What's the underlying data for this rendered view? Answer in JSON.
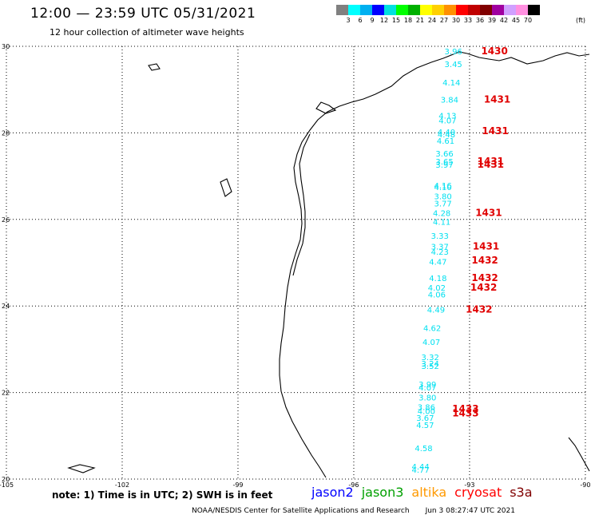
{
  "header": {
    "title": "12:00 — 23:59 UTC 05/31/2021",
    "subtitle": "12 hour collection of altimeter wave heights"
  },
  "colorbar": {
    "colors": [
      "#808080",
      "#00ffff",
      "#00b0f0",
      "#0000ff",
      "#00e0e0",
      "#00ff00",
      "#00b000",
      "#ffff00",
      "#ffd000",
      "#ff9000",
      "#ff0000",
      "#c00000",
      "#800000",
      "#a000a0",
      "#d0a0ff",
      "#ff90e0",
      "#000000"
    ],
    "ticks": [
      "3",
      "6",
      "9",
      "12",
      "15",
      "18",
      "21",
      "24",
      "27",
      "30",
      "33",
      "36",
      "39",
      "42",
      "45",
      "70"
    ],
    "unit": "(ft)"
  },
  "map": {
    "lon_labels": [
      "-105",
      "-102",
      "-99",
      "-96",
      "-93",
      "-90"
    ],
    "lat_labels": [
      "30",
      "28",
      "26",
      "24",
      "22",
      "20"
    ],
    "wave_color": "#00e0f0",
    "time_color": "#e00000",
    "wave_heights": [
      {
        "lon": -93.65,
        "lat": 29.82,
        "value": "3.96"
      },
      {
        "lon": -93.65,
        "lat": 29.52,
        "value": "3.45"
      },
      {
        "lon": -93.7,
        "lat": 29.1,
        "value": "4.14"
      },
      {
        "lon": -93.75,
        "lat": 28.7,
        "value": "3.84"
      },
      {
        "lon": -93.8,
        "lat": 28.33,
        "value": "4.13"
      },
      {
        "lon": -93.8,
        "lat": 28.22,
        "value": "4.07"
      },
      {
        "lon": -93.83,
        "lat": 27.95,
        "value": "4.40"
      },
      {
        "lon": -93.83,
        "lat": 27.9,
        "value": "4.48"
      },
      {
        "lon": -93.85,
        "lat": 27.75,
        "value": "4.61"
      },
      {
        "lon": -93.88,
        "lat": 27.45,
        "value": "3.66"
      },
      {
        "lon": -93.88,
        "lat": 27.27,
        "value": "3.65"
      },
      {
        "lon": -93.88,
        "lat": 27.2,
        "value": "3.97"
      },
      {
        "lon": -93.92,
        "lat": 26.72,
        "value": "4.16"
      },
      {
        "lon": -93.92,
        "lat": 26.68,
        "value": "4.10"
      },
      {
        "lon": -93.92,
        "lat": 26.47,
        "value": "3.80"
      },
      {
        "lon": -93.92,
        "lat": 26.3,
        "value": "3.77"
      },
      {
        "lon": -93.95,
        "lat": 26.08,
        "value": "4.28"
      },
      {
        "lon": -93.95,
        "lat": 25.88,
        "value": "4.11"
      },
      {
        "lon": -94.0,
        "lat": 25.55,
        "value": "3.33"
      },
      {
        "lon": -94.0,
        "lat": 25.3,
        "value": "3.37"
      },
      {
        "lon": -94.0,
        "lat": 25.18,
        "value": "4.23"
      },
      {
        "lon": -94.05,
        "lat": 24.95,
        "value": "4.47"
      },
      {
        "lon": -94.05,
        "lat": 24.58,
        "value": "4.18"
      },
      {
        "lon": -94.08,
        "lat": 24.35,
        "value": "4.02"
      },
      {
        "lon": -94.08,
        "lat": 24.2,
        "value": "4.06"
      },
      {
        "lon": -94.1,
        "lat": 23.85,
        "value": "4.49"
      },
      {
        "lon": -94.2,
        "lat": 23.42,
        "value": "4.62"
      },
      {
        "lon": -94.22,
        "lat": 23.1,
        "value": "4.07"
      },
      {
        "lon": -94.25,
        "lat": 22.75,
        "value": "3.32"
      },
      {
        "lon": -94.25,
        "lat": 22.6,
        "value": "3.24"
      },
      {
        "lon": -94.25,
        "lat": 22.55,
        "value": "3.52"
      },
      {
        "lon": -94.32,
        "lat": 22.12,
        "value": "3.99"
      },
      {
        "lon": -94.32,
        "lat": 22.05,
        "value": "4.07"
      },
      {
        "lon": -94.32,
        "lat": 21.82,
        "value": "3.80"
      },
      {
        "lon": -94.35,
        "lat": 21.6,
        "value": "3.86"
      },
      {
        "lon": -94.35,
        "lat": 21.5,
        "value": "4.00"
      },
      {
        "lon": -94.38,
        "lat": 21.35,
        "value": "3.67"
      },
      {
        "lon": -94.38,
        "lat": 21.18,
        "value": "4.57"
      },
      {
        "lon": -94.42,
        "lat": 20.65,
        "value": "4.58"
      },
      {
        "lon": -94.5,
        "lat": 20.22,
        "value": "4.44"
      },
      {
        "lon": -94.5,
        "lat": 20.15,
        "value": "4.77"
      }
    ],
    "pass_times": [
      {
        "lon": -92.7,
        "lat": 29.82,
        "value": "1430"
      },
      {
        "lon": -92.63,
        "lat": 28.7,
        "value": "1431"
      },
      {
        "lon": -92.68,
        "lat": 27.97,
        "value": "1431"
      },
      {
        "lon": -92.8,
        "lat": 27.27,
        "value": "1431"
      },
      {
        "lon": -92.8,
        "lat": 27.2,
        "value": "1431"
      },
      {
        "lon": -92.85,
        "lat": 26.08,
        "value": "1431"
      },
      {
        "lon": -92.92,
        "lat": 25.3,
        "value": "1431"
      },
      {
        "lon": -92.95,
        "lat": 24.98,
        "value": "1432"
      },
      {
        "lon": -92.95,
        "lat": 24.58,
        "value": "1432"
      },
      {
        "lon": -92.98,
        "lat": 24.35,
        "value": "1432"
      },
      {
        "lon": -93.1,
        "lat": 23.85,
        "value": "1432"
      },
      {
        "lon": -93.45,
        "lat": 21.55,
        "value": "1433"
      },
      {
        "lon": -93.45,
        "lat": 21.45,
        "value": "1433"
      }
    ]
  },
  "footnote": "note: 1) Time is in UTC; 2) SWH is in feet",
  "satellites": [
    {
      "label": "jason2",
      "color": "#0000ff"
    },
    {
      "label": "jason3",
      "color": "#00a000"
    },
    {
      "label": "altika",
      "color": "#ff9900"
    },
    {
      "label": "cryosat",
      "color": "#ff0000"
    },
    {
      "label": "s3a",
      "color": "#800000"
    }
  ],
  "credit": {
    "org": "NOAA/NESDIS Center for Satellite Applications and Research",
    "time": "Jun  3 08:27:47 UTC 2021"
  }
}
